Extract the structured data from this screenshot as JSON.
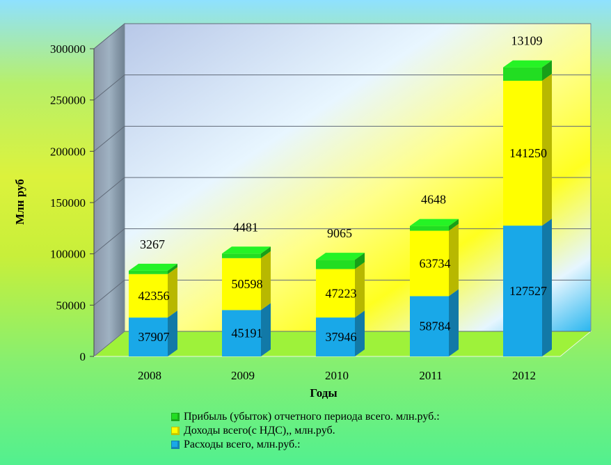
{
  "chart_data": {
    "type": "bar",
    "stacked": true,
    "categories": [
      "2008",
      "2009",
      "2010",
      "2011",
      "2012"
    ],
    "series": [
      {
        "name": "Расходы всего, млн.руб.:",
        "values": [
          37907,
          45191,
          37946,
          58784,
          127527
        ],
        "color": "#19a8e8"
      },
      {
        "name": "Доходы всего(с НДС),, млн.руб.",
        "values": [
          42356,
          50598,
          47223,
          63734,
          141250
        ],
        "color": "#ffff00"
      },
      {
        "name": "Прибыль (убыток) отчетного периода всего. млн.руб.:",
        "values": [
          3267,
          4481,
          9065,
          4648,
          13109
        ],
        "color": "#22dd22"
      }
    ],
    "xlabel": "Годы",
    "ylabel": "Млн руб",
    "ylim": [
      0,
      300000
    ],
    "yticks": [
      "0",
      "50000",
      "100000",
      "150000",
      "200000",
      "250000",
      "300000"
    ],
    "grid": true,
    "legend_position": "bottom"
  },
  "legend": [
    {
      "label": "Прибыль (убыток) отчетного периода всего. млн.руб.:",
      "color": "#22dd22"
    },
    {
      "label": "Доходы всего(с НДС),, млн.руб.",
      "color": "#ffff00"
    },
    {
      "label": "Расходы всего, млн.руб.:",
      "color": "#19a8e8"
    }
  ]
}
